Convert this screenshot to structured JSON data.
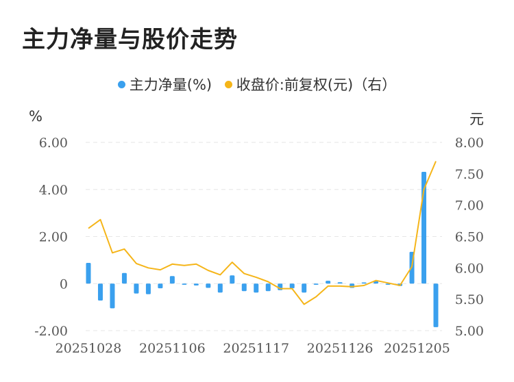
{
  "title": "主力净量与股价走势",
  "legend": {
    "series1": "主力净量(%)",
    "series2": "收盘价:前复权(元)（右）"
  },
  "units": {
    "left": "%",
    "right": "元"
  },
  "colors": {
    "bar": "#3aa0ee",
    "line": "#f5b519",
    "grid": "#e6e6e6"
  },
  "chart_data": {
    "type": "bar+line",
    "x_tick_labels": [
      "20251028",
      "20251106",
      "20251117",
      "20251126",
      "20251205"
    ],
    "x_tick_indices": [
      0,
      7,
      14,
      21,
      28
    ],
    "y_left": {
      "ticks": [
        "-2.00",
        "0",
        "2.00",
        "4.00",
        "6.00"
      ],
      "values": [
        -2,
        0,
        2,
        4,
        6
      ],
      "range": [
        -2,
        6
      ]
    },
    "y_right": {
      "ticks": [
        "5.00",
        "5.50",
        "6.00",
        "6.50",
        "7.00",
        "7.50",
        "8.00"
      ],
      "values": [
        5,
        5.5,
        6,
        6.5,
        7,
        7.5,
        8
      ],
      "range": [
        5,
        8
      ]
    },
    "series": [
      {
        "name": "主力净量(%)",
        "type": "bar",
        "axis": "left",
        "values": [
          0.88,
          -0.72,
          -1.05,
          0.45,
          -0.42,
          -0.45,
          -0.2,
          0.32,
          -0.05,
          -0.08,
          -0.18,
          -0.38,
          0.35,
          -0.32,
          -0.38,
          -0.32,
          -0.28,
          -0.2,
          -0.38,
          -0.05,
          0.12,
          0.06,
          -0.18,
          0.05,
          0.1,
          -0.05,
          -0.1,
          1.35,
          4.75,
          -1.85
        ]
      },
      {
        "name": "收盘价:前复权(元)（右）",
        "type": "line",
        "axis": "right",
        "values": [
          6.63,
          6.77,
          6.24,
          6.3,
          6.07,
          6.0,
          5.97,
          6.06,
          6.04,
          6.06,
          5.96,
          5.89,
          6.09,
          5.91,
          5.85,
          5.78,
          5.67,
          5.67,
          5.42,
          5.54,
          5.71,
          5.71,
          5.7,
          5.72,
          5.8,
          5.76,
          5.72,
          6.02,
          7.25,
          7.7
        ]
      }
    ]
  }
}
